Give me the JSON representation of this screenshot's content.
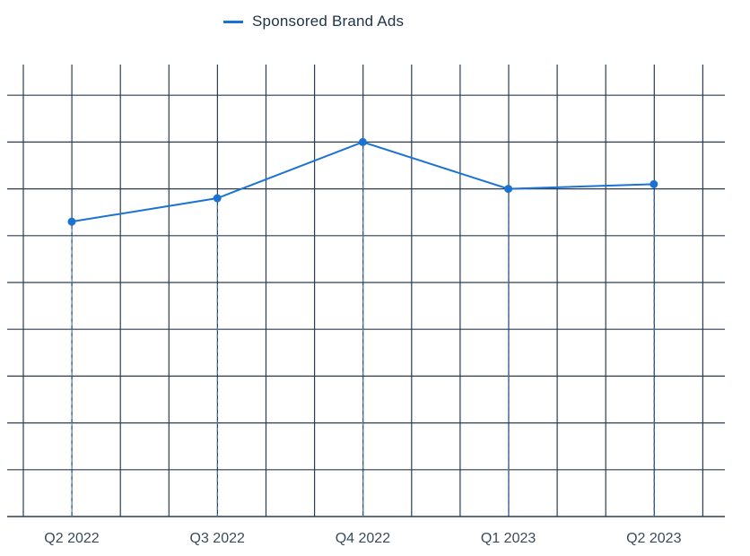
{
  "chart_data": {
    "type": "line",
    "title": "",
    "xlabel": "",
    "ylabel": "",
    "categories": [
      "Q2 2022",
      "Q3 2022",
      "Q4 2022",
      "Q1 2023",
      "Q2 2023"
    ],
    "series": [
      {
        "name": "Sponsored Brand Ads",
        "values": [
          6.3,
          6.8,
          8.0,
          7.0,
          7.1
        ],
        "color": "#1a73d4"
      }
    ],
    "ylim": [
      0,
      9
    ],
    "grid": true,
    "y_tick_labels_shown": false,
    "legend": "top-center"
  }
}
